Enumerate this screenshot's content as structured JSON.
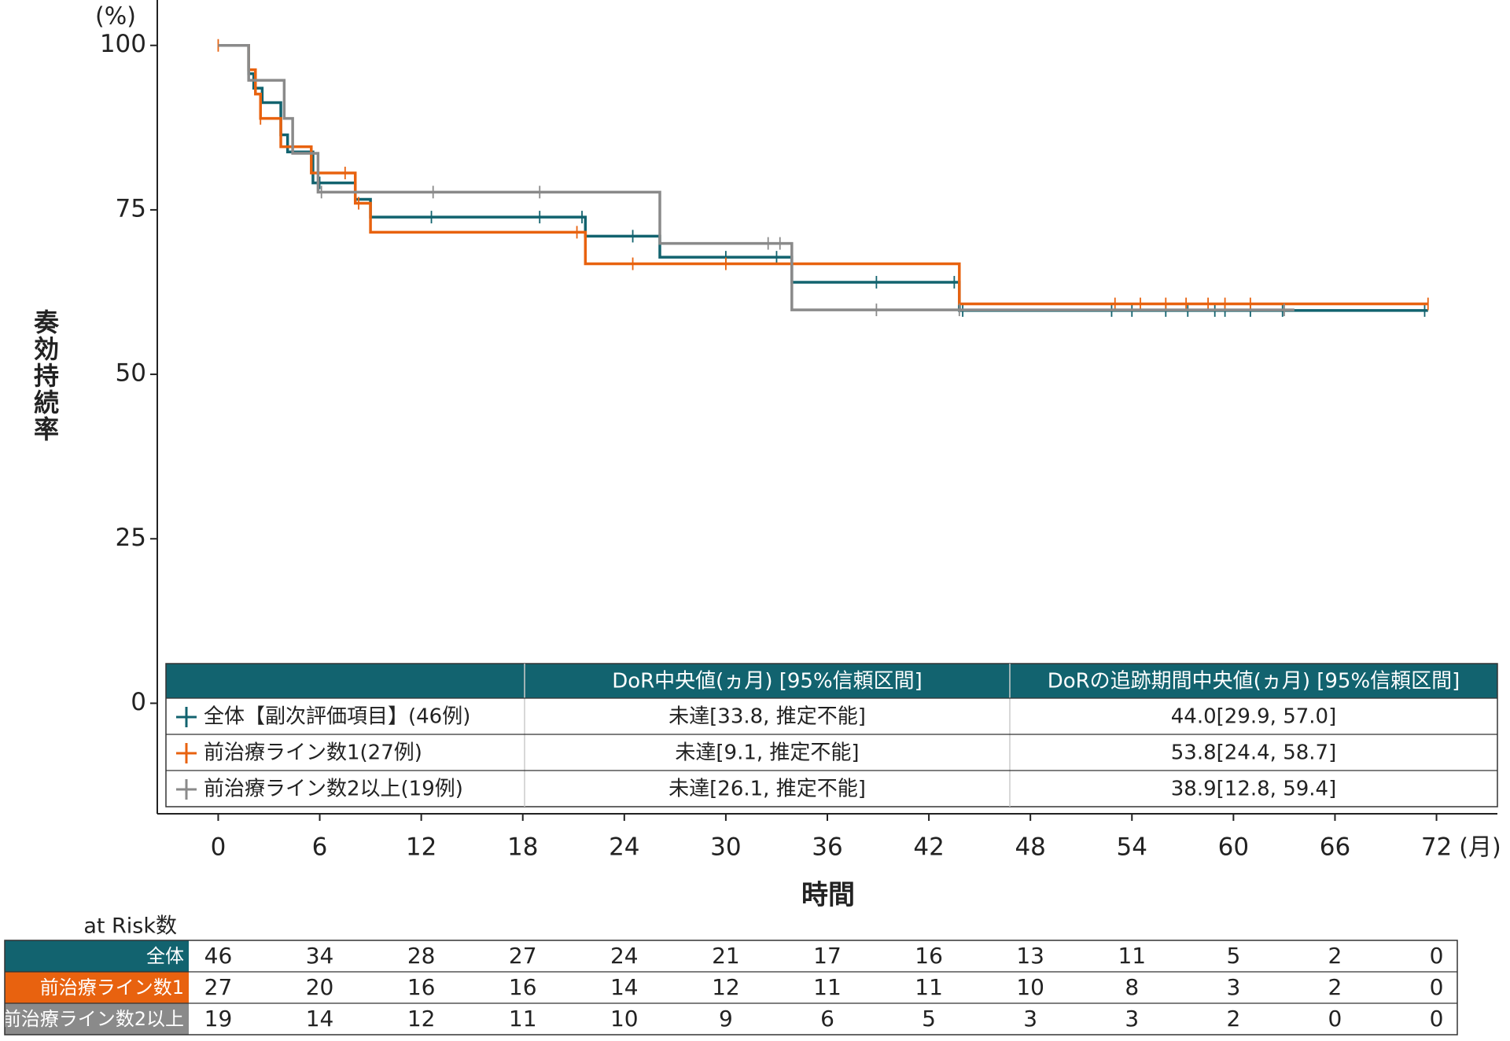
{
  "chart_data": {
    "type": "step",
    "y_unit": "(%)",
    "x_unit": "(月)",
    "ylabel": "奏効持続率",
    "xlabel": "時間",
    "xlim": [
      -3.6,
      75.6
    ],
    "ylim": [
      -16.8,
      106.9
    ],
    "xticks": [
      0,
      6,
      12,
      18,
      24,
      30,
      36,
      42,
      48,
      54,
      60,
      66,
      72
    ],
    "yticks": [
      0,
      25,
      50,
      75,
      100
    ],
    "series": [
      {
        "name": "全体【副次評価項目】(46例)",
        "color": "#12636f",
        "x": [
          0,
          1.8,
          2.1,
          2.6,
          3.7,
          4.1,
          5.6,
          8.1,
          9.0,
          21.7,
          26.1,
          33.9,
          43.8,
          71.5
        ],
        "values": [
          100,
          95.7,
          93.5,
          91.3,
          86.4,
          83.8,
          79.1,
          76.6,
          73.9,
          71.0,
          67.8,
          64.0,
          59.7,
          59.7
        ],
        "censor_x": [
          6.0,
          12.6,
          19.0,
          21.5,
          24.5,
          30.0,
          33.0,
          38.9,
          43.5,
          44.0,
          52.8,
          54.0,
          56.0,
          57.3,
          58.9,
          59.5,
          61.0,
          62.9,
          71.3
        ],
        "censor_values": [
          79.1,
          73.9,
          73.9,
          73.9,
          71.0,
          67.8,
          67.8,
          64.0,
          64.0,
          59.7,
          59.7,
          59.7,
          59.7,
          59.7,
          59.7,
          59.7,
          59.7,
          59.7,
          59.7
        ]
      },
      {
        "name": "前治療ライン数1(27例)",
        "color": "#e8620f",
        "x": [
          0,
          1.8,
          2.2,
          2.5,
          3.7,
          5.5,
          8.1,
          9.0,
          21.7,
          43.8,
          71.5
        ],
        "values": [
          100,
          96.3,
          92.6,
          88.9,
          84.6,
          80.6,
          76.0,
          71.6,
          66.8,
          60.7,
          60.7
        ],
        "censor_x": [
          0,
          2.5,
          7.5,
          8.3,
          21.2,
          24.5,
          30.0,
          53.0,
          54.5,
          56.0,
          57.2,
          58.5,
          59.5,
          61.0,
          71.5
        ],
        "censor_values": [
          100,
          88.9,
          80.6,
          76.0,
          71.6,
          66.8,
          66.8,
          60.7,
          60.7,
          60.7,
          60.7,
          60.7,
          60.7,
          60.7,
          60.7
        ]
      },
      {
        "name": "前治療ライン数2以上(19例)",
        "color": "#8a8a8a",
        "x": [
          0,
          1.8,
          3.9,
          4.4,
          5.9,
          26.1,
          33.9,
          63.6
        ],
        "values": [
          100,
          94.7,
          88.9,
          83.6,
          77.7,
          69.9,
          59.8,
          59.8
        ],
        "censor_x": [
          6.1,
          12.7,
          19.0,
          32.5,
          33.2,
          38.9,
          43.8,
          63.0
        ],
        "censor_values": [
          77.7,
          77.7,
          77.7,
          69.9,
          69.9,
          59.8,
          59.8,
          59.8
        ]
      }
    ],
    "summary_table": {
      "headers": [
        "DoR中央値(ヵ月) [95%信頼区間]",
        "DoRの追跡期間中央値(ヵ月) [95%信頼区間]"
      ],
      "rows": [
        [
          "未達[33.8, 推定不能]",
          "44.0[29.9, 57.0]"
        ],
        [
          "未達[9.1, 推定不能]",
          "53.8[24.4, 58.7]"
        ],
        [
          "未達[26.1, 推定不能]",
          "38.9[12.8, 59.4]"
        ]
      ]
    },
    "risk_table": {
      "title": "at Risk数",
      "rows": [
        {
          "label": "全体",
          "color": "#12636f",
          "counts": [
            46,
            34,
            28,
            27,
            24,
            21,
            17,
            16,
            13,
            11,
            5,
            2,
            0
          ]
        },
        {
          "label": "前治療ライン数1",
          "color": "#e8620f",
          "counts": [
            27,
            20,
            16,
            16,
            14,
            12,
            11,
            11,
            10,
            8,
            3,
            2,
            0
          ]
        },
        {
          "label": "前治療ライン数2以上",
          "color": "#8a8a8a",
          "counts": [
            19,
            14,
            12,
            11,
            10,
            9,
            6,
            5,
            3,
            3,
            2,
            0,
            0
          ]
        }
      ]
    }
  }
}
